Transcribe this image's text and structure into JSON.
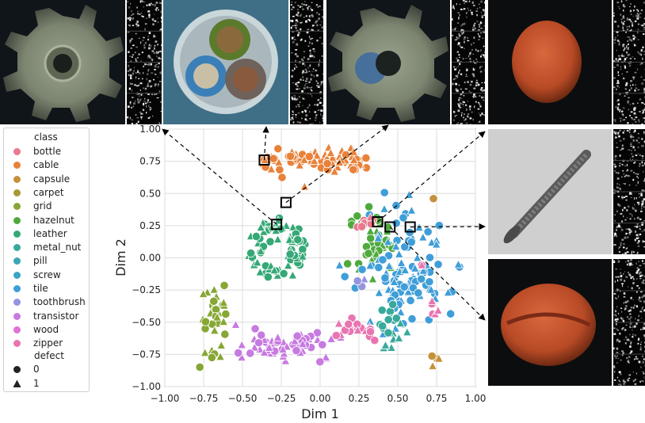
{
  "chart_data": {
    "type": "scatter",
    "xlabel": "Dim 1",
    "ylabel": "Dim 2",
    "xlim": [
      -1.0,
      1.0
    ],
    "ylim": [
      -1.0,
      1.0
    ],
    "xticks": [
      "−1.00",
      "−0.75",
      "−0.50",
      "−0.25",
      "0.00",
      "0.25",
      "0.50",
      "0.75",
      "1.00"
    ],
    "yticks": [
      "1.00",
      "0.75",
      "0.50",
      "0.25",
      "0.00",
      "−0.25",
      "−0.50",
      "−0.75",
      "−1.00"
    ],
    "grid": true,
    "legend": {
      "placement": "left-outside",
      "hue_title": "class",
      "style_title": "defect",
      "style_levels": [
        "0",
        "1"
      ],
      "classes": [
        {
          "name": "bottle",
          "color": "#e8798f"
        },
        {
          "name": "cable",
          "color": "#e8823a"
        },
        {
          "name": "capsule",
          "color": "#c4913a"
        },
        {
          "name": "carpet",
          "color": "#a69a34"
        },
        {
          "name": "grid",
          "color": "#86a733"
        },
        {
          "name": "hazelnut",
          "color": "#4faa3d"
        },
        {
          "name": "leather",
          "color": "#35a876"
        },
        {
          "name": "metal_nut",
          "color": "#38a99a"
        },
        {
          "name": "pill",
          "color": "#3ba7b4"
        },
        {
          "name": "screw",
          "color": "#3ba4c4"
        },
        {
          "name": "tile",
          "color": "#3f9ed8"
        },
        {
          "name": "toothbrush",
          "color": "#9594e0"
        },
        {
          "name": "transistor",
          "color": "#c77ae0"
        },
        {
          "name": "wood",
          "color": "#e270d8"
        },
        {
          "name": "zipper",
          "color": "#e875b0"
        }
      ]
    },
    "clusters": [
      {
        "class": "cable",
        "shape": "line",
        "x0": -0.38,
        "x1": 0.3,
        "cy": 0.76,
        "spread": 0.04,
        "n": 90
      },
      {
        "class": "cable",
        "shape": "single",
        "cx": -0.1,
        "cy": 0.55,
        "tri": true
      },
      {
        "class": "leather",
        "shape": "ring",
        "cx": -0.28,
        "cy": 0.06,
        "r": 0.17,
        "n": 80
      },
      {
        "class": "grid",
        "shape": "blob",
        "cx": -0.68,
        "cy": -0.45,
        "sx": 0.05,
        "sy": 0.14,
        "n": 35
      },
      {
        "class": "transistor",
        "shape": "blob",
        "cx": -0.22,
        "cy": -0.68,
        "sx": 0.17,
        "sy": 0.06,
        "n": 60
      },
      {
        "class": "hazelnut",
        "shape": "blob",
        "cx": 0.37,
        "cy": 0.08,
        "sx": 0.08,
        "sy": 0.14,
        "n": 45
      },
      {
        "class": "tile",
        "shape": "blob",
        "cx": 0.56,
        "cy": -0.1,
        "sx": 0.13,
        "sy": 0.24,
        "n": 110
      },
      {
        "class": "metal_nut",
        "shape": "blob",
        "cx": 0.46,
        "cy": -0.55,
        "sx": 0.06,
        "sy": 0.1,
        "n": 20
      },
      {
        "class": "bottle",
        "shape": "blob",
        "cx": 0.25,
        "cy": 0.26,
        "sx": 0.04,
        "sy": 0.02,
        "n": 8
      },
      {
        "class": "zipper",
        "shape": "blob",
        "cx": 0.22,
        "cy": -0.52,
        "sx": 0.07,
        "sy": 0.06,
        "n": 18
      },
      {
        "class": "toothbrush",
        "shape": "blob",
        "cx": 0.26,
        "cy": -0.16,
        "sx": 0.03,
        "sy": 0.03,
        "n": 3
      },
      {
        "class": "capsule",
        "shape": "blob",
        "cx": 0.75,
        "cy": -0.78,
        "sx": 0.02,
        "sy": 0.03,
        "n": 4
      },
      {
        "class": "capsule",
        "shape": "single",
        "cx": 0.73,
        "cy": 0.46
      },
      {
        "class": "zipper",
        "shape": "blob",
        "cx": 0.73,
        "cy": -0.42,
        "sx": 0.02,
        "sy": 0.04,
        "n": 5
      },
      {
        "class": "zipper",
        "shape": "blob",
        "cx": 0.66,
        "cy": -0.07,
        "sx": 0.01,
        "sy": 0.02,
        "n": 2
      }
    ],
    "highlight_points": [
      {
        "x": -0.36,
        "y": 0.76
      },
      {
        "x": -0.22,
        "y": 0.43
      },
      {
        "x": -0.28,
        "y": 0.26
      },
      {
        "x": 0.37,
        "y": 0.28
      },
      {
        "x": 0.45,
        "y": 0.24
      },
      {
        "x": 0.58,
        "y": 0.24
      }
    ]
  }
}
